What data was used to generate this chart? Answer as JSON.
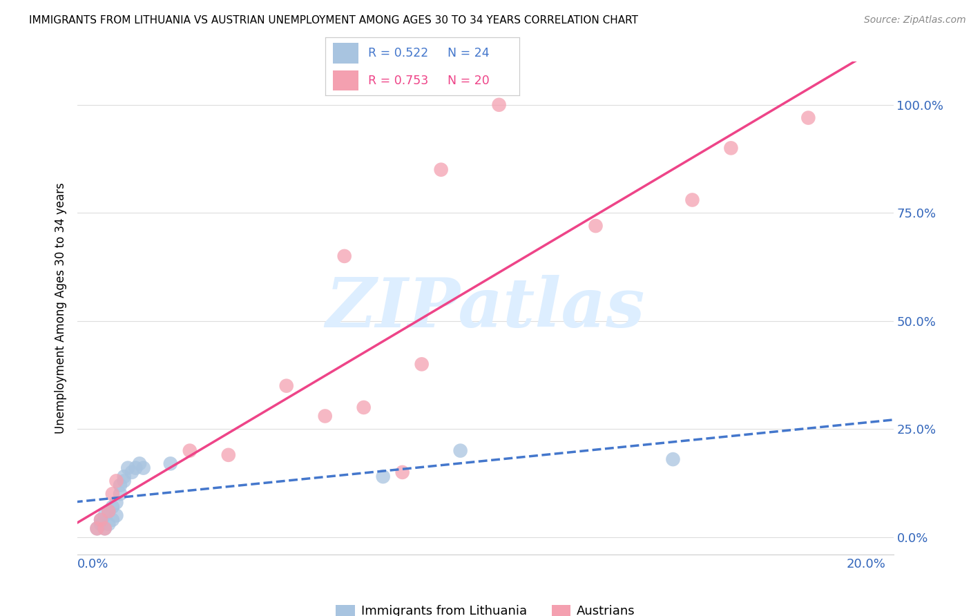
{
  "title": "IMMIGRANTS FROM LITHUANIA VS AUSTRIAN UNEMPLOYMENT AMONG AGES 30 TO 34 YEARS CORRELATION CHART",
  "source": "Source: ZipAtlas.com",
  "ylabel": "Unemployment Among Ages 30 to 34 years",
  "ytick_labels": [
    "0.0%",
    "25.0%",
    "50.0%",
    "75.0%",
    "100.0%"
  ],
  "ytick_values": [
    0.0,
    0.25,
    0.5,
    0.75,
    1.0
  ],
  "xtick_labels": [
    "0.0%",
    "",
    "",
    "",
    "20.0%"
  ],
  "xtick_values": [
    0.0,
    0.05,
    0.1,
    0.15,
    0.2
  ],
  "blue_color": "#a8c4e0",
  "pink_color": "#f4a0b0",
  "blue_line_color": "#4477cc",
  "pink_line_color": "#ee4488",
  "watermark": "ZIPatlas",
  "watermark_color": "#ddeeff",
  "blue_R": 0.522,
  "blue_N": 24,
  "pink_R": 0.753,
  "pink_N": 20,
  "blue_x": [
    0.001,
    0.002,
    0.002,
    0.003,
    0.003,
    0.004,
    0.004,
    0.005,
    0.005,
    0.006,
    0.006,
    0.007,
    0.007,
    0.008,
    0.008,
    0.009,
    0.01,
    0.011,
    0.012,
    0.013,
    0.02,
    0.075,
    0.095,
    0.15
  ],
  "blue_y": [
    0.02,
    0.03,
    0.04,
    0.02,
    0.05,
    0.03,
    0.06,
    0.04,
    0.07,
    0.05,
    0.08,
    0.1,
    0.12,
    0.13,
    0.14,
    0.16,
    0.15,
    0.16,
    0.17,
    0.16,
    0.17,
    0.14,
    0.2,
    0.18
  ],
  "pink_x": [
    0.001,
    0.002,
    0.003,
    0.004,
    0.005,
    0.006,
    0.025,
    0.035,
    0.05,
    0.06,
    0.065,
    0.07,
    0.08,
    0.085,
    0.09,
    0.105,
    0.13,
    0.155,
    0.165,
    0.185
  ],
  "pink_y": [
    0.02,
    0.04,
    0.02,
    0.06,
    0.1,
    0.13,
    0.2,
    0.19,
    0.35,
    0.28,
    0.65,
    0.3,
    0.15,
    0.4,
    0.85,
    1.0,
    0.72,
    0.78,
    0.9,
    0.97
  ]
}
